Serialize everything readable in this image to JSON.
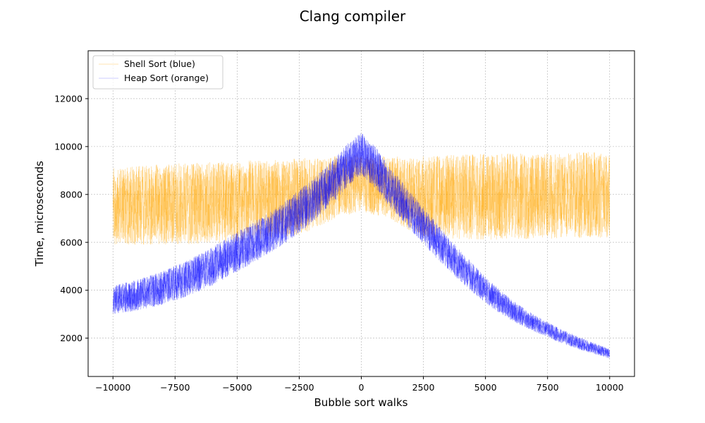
{
  "chart_data": {
    "type": "line",
    "title": "Clang compiler",
    "xlabel": "Bubble sort walks",
    "ylabel": "Time, microseconds",
    "xlim": [
      -11000,
      11000
    ],
    "ylim": [
      400,
      14000
    ],
    "x_ticks": [
      -10000,
      -7500,
      -5000,
      -2500,
      0,
      2500,
      5000,
      7500,
      10000
    ],
    "x_tick_labels": [
      "−10000",
      "−7500",
      "−5000",
      "−2500",
      "0",
      "2500",
      "5000",
      "7500",
      "10000"
    ],
    "y_ticks": [
      2000,
      4000,
      6000,
      8000,
      10000,
      12000
    ],
    "y_tick_labels": [
      "2000",
      "4000",
      "6000",
      "8000",
      "10000",
      "12000"
    ],
    "grid": true,
    "legend_position": "top-left",
    "series": [
      {
        "name": "Shell Sort (blue)",
        "color": "#0000ff",
        "x": [
          -10000,
          -9000,
          -8000,
          -7000,
          -6000,
          -5000,
          -4000,
          -3000,
          -2000,
          -1000,
          -500,
          0,
          500,
          1000,
          2000,
          3000,
          4000,
          5000,
          6000,
          7000,
          8000,
          9000,
          10000
        ],
        "y": [
          3600,
          3800,
          4100,
          4500,
          5000,
          5600,
          6200,
          6900,
          7700,
          8700,
          9300,
          9700,
          9200,
          8500,
          7300,
          6100,
          5000,
          4000,
          3200,
          2600,
          2100,
          1700,
          1350
        ],
        "spread": [
          600,
          650,
          700,
          750,
          800,
          850,
          850,
          900,
          900,
          900,
          900,
          900,
          900,
          850,
          800,
          750,
          650,
          550,
          450,
          350,
          300,
          250,
          200
        ]
      },
      {
        "name": "Heap Sort (orange)",
        "color": "#ffa500",
        "x": [
          -10000,
          -7500,
          -5000,
          -2500,
          -1000,
          0,
          1000,
          2500,
          5000,
          7500,
          10000
        ],
        "y": [
          7500,
          7600,
          7700,
          7900,
          8300,
          8500,
          8300,
          7900,
          7900,
          7950,
          8000
        ],
        "spread": [
          1600,
          1700,
          1700,
          1600,
          1300,
          1200,
          1300,
          1700,
          1800,
          1800,
          1800
        ]
      }
    ]
  }
}
